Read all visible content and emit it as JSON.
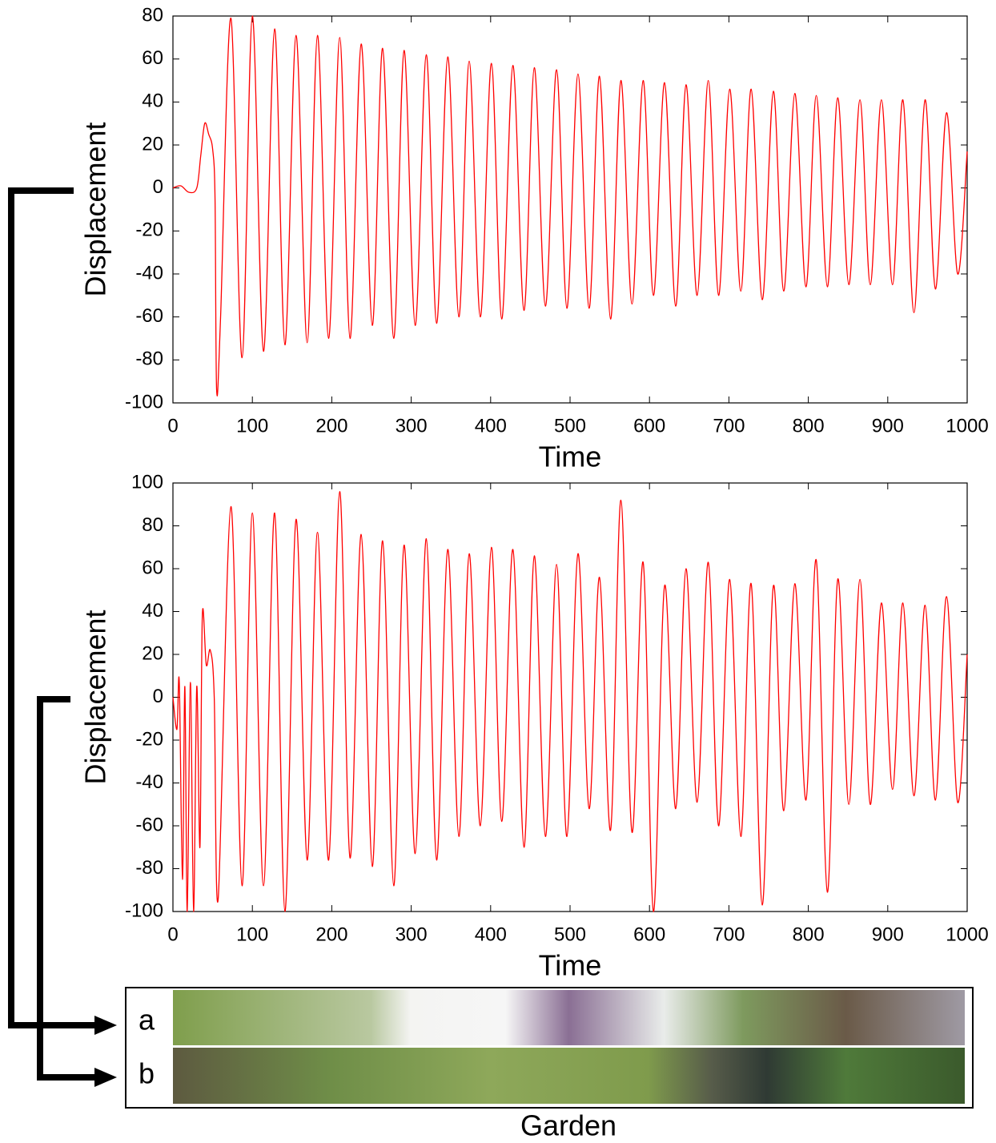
{
  "chart_data": [
    {
      "type": "line",
      "xlabel": "Time",
      "ylabel": "Displacement",
      "xlim": [
        0,
        1000
      ],
      "ylim": [
        -100,
        80
      ],
      "xticks": [
        0,
        100,
        200,
        300,
        400,
        500,
        600,
        700,
        800,
        900,
        1000
      ],
      "yticks": [
        -100,
        -80,
        -60,
        -40,
        -20,
        0,
        20,
        40,
        60,
        80
      ],
      "x": [
        0,
        10,
        20,
        30,
        35,
        40,
        45,
        50,
        53,
        55,
        60,
        73,
        87,
        100,
        114,
        128,
        141,
        155,
        169,
        182,
        196,
        210,
        223,
        237,
        251,
        264,
        278,
        291,
        305,
        319,
        332,
        346,
        360,
        373,
        387,
        401,
        414,
        428,
        442,
        455,
        469,
        483,
        496,
        510,
        524,
        537,
        551,
        564,
        578,
        592,
        605,
        619,
        633,
        646,
        660,
        674,
        687,
        701,
        715,
        728,
        742,
        756,
        769,
        783,
        797,
        810,
        824,
        837,
        851,
        865,
        878,
        892,
        906,
        919,
        933,
        947,
        960,
        974,
        988,
        1000
      ],
      "series": [
        {
          "color": "#ff0000",
          "values": [
            0,
            1,
            -2,
            0,
            15,
            30,
            25,
            18,
            -5,
            -94,
            -60,
            79,
            -79,
            80,
            -76,
            74,
            -73,
            71,
            -72,
            71,
            -70,
            70,
            -70,
            67,
            -64,
            65,
            -70,
            64,
            -64,
            62,
            -63,
            61,
            -60,
            59,
            -60,
            58,
            -61,
            57,
            -57,
            56,
            -55,
            55,
            -56,
            53,
            -56,
            52,
            -61,
            50,
            -54,
            50,
            -50,
            49,
            -55,
            48,
            -50,
            50,
            -50,
            46,
            -48,
            46,
            -52,
            45,
            -48,
            44,
            -46,
            43,
            -46,
            42,
            -45,
            41,
            -45,
            41,
            -45,
            41,
            -58,
            41,
            -47,
            35,
            -40,
            17
          ]
        }
      ]
    },
    {
      "type": "line",
      "xlabel": "Time",
      "ylabel": "Displacement",
      "xlim": [
        0,
        1000
      ],
      "ylim": [
        -100,
        100
      ],
      "xticks": [
        0,
        100,
        200,
        300,
        400,
        500,
        600,
        700,
        800,
        900,
        1000
      ],
      "yticks": [
        -100,
        -80,
        -60,
        -40,
        -20,
        0,
        20,
        40,
        60,
        80,
        100
      ],
      "x": [
        0,
        5,
        8,
        12,
        15,
        18,
        22,
        26,
        30,
        34,
        37,
        42,
        47,
        52,
        57,
        73,
        87,
        100,
        114,
        128,
        141,
        155,
        169,
        182,
        196,
        210,
        223,
        237,
        251,
        264,
        278,
        291,
        305,
        319,
        332,
        346,
        360,
        373,
        387,
        401,
        414,
        428,
        442,
        455,
        469,
        483,
        496,
        510,
        524,
        537,
        551,
        564,
        578,
        592,
        605,
        619,
        633,
        646,
        660,
        674,
        687,
        701,
        715,
        728,
        742,
        756,
        769,
        783,
        797,
        810,
        824,
        837,
        851,
        865,
        878,
        892,
        906,
        919,
        933,
        947,
        960,
        974,
        988,
        1000
      ],
      "series": [
        {
          "color": "#ff0000",
          "values": [
            0,
            -15,
            7,
            -85,
            5,
            -100,
            7,
            -100,
            5,
            -70,
            38,
            15,
            22,
            0,
            -94,
            89,
            -88,
            86,
            -88,
            86,
            -100,
            83,
            -76,
            77,
            -76,
            96,
            -75,
            76,
            -79,
            73,
            -88,
            71,
            -73,
            74,
            -76,
            69,
            -65,
            67,
            -60,
            70,
            -58,
            69,
            -70,
            66,
            -65,
            62,
            -65,
            67,
            -52,
            56,
            -62,
            92,
            -63,
            63,
            -100,
            52,
            -52,
            60,
            -49,
            63,
            -60,
            55,
            -65,
            53,
            -97,
            52,
            -53,
            53,
            -48,
            64,
            -91,
            55,
            -50,
            55,
            -50,
            44,
            -43,
            44,
            -46,
            43,
            -48,
            47,
            -49,
            20
          ]
        }
      ]
    }
  ],
  "panel": {
    "labels": [
      "a",
      "b"
    ],
    "title": "Garden"
  }
}
